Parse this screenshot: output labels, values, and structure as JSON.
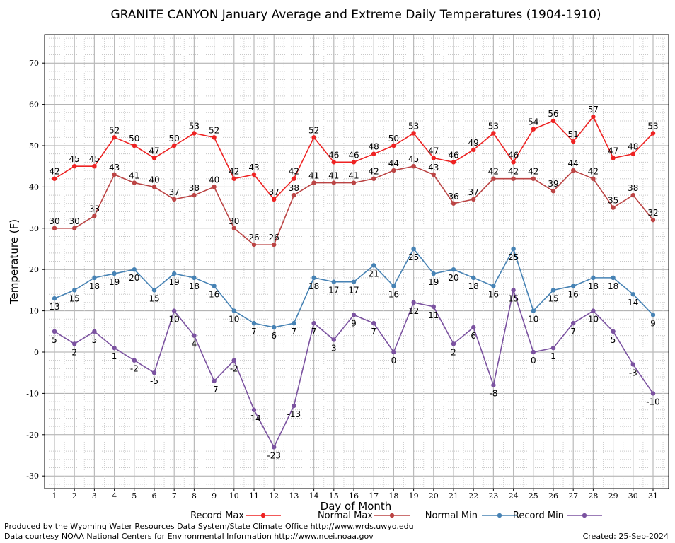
{
  "chart_data": {
    "type": "line",
    "title": "GRANITE CANYON January Average and Extreme Daily Temperatures (1904-1910)",
    "xlabel": "Day of Month",
    "ylabel": "Temperature (F)",
    "x": [
      1,
      2,
      3,
      4,
      5,
      6,
      7,
      8,
      9,
      10,
      11,
      12,
      13,
      14,
      15,
      16,
      17,
      18,
      19,
      20,
      21,
      22,
      23,
      24,
      25,
      26,
      27,
      28,
      29,
      30,
      31
    ],
    "ylim": [
      -35,
      78
    ],
    "yticks": [
      -30,
      -20,
      -10,
      0,
      10,
      20,
      30,
      40,
      50,
      60,
      70
    ],
    "grid": true,
    "legend_position": "bottom",
    "series": [
      {
        "name": "Record Max",
        "color": "#ee2222",
        "values": [
          42,
          45,
          45,
          52,
          50,
          47,
          50,
          53,
          52,
          42,
          43,
          37,
          42,
          52,
          46,
          46,
          48,
          50,
          53,
          47,
          46,
          49,
          53,
          46,
          54,
          56,
          51,
          57,
          47,
          48,
          53
        ]
      },
      {
        "name": "Normal Max",
        "color": "#bb4444",
        "values": [
          30,
          30,
          33,
          43,
          41,
          40,
          37,
          38,
          40,
          30,
          26,
          26,
          38,
          41,
          41,
          41,
          42,
          44,
          45,
          43,
          36,
          37,
          42,
          42,
          42,
          39,
          44,
          42,
          35,
          38,
          32
        ]
      },
      {
        "name": "Normal Min",
        "color": "#4682b4",
        "values": [
          13,
          15,
          18,
          19,
          20,
          15,
          19,
          18,
          16,
          10,
          7,
          6,
          7,
          18,
          17,
          17,
          21,
          16,
          25,
          19,
          20,
          18,
          16,
          25,
          10,
          15,
          16,
          18,
          18,
          14,
          9
        ]
      },
      {
        "name": "Record Min",
        "color": "#7b52a0",
        "values": [
          5,
          2,
          5,
          1,
          -2,
          -5,
          10,
          4,
          -7,
          -2,
          -14,
          -23,
          -13,
          7,
          3,
          9,
          7,
          0,
          12,
          11,
          2,
          6,
          -8,
          15,
          0,
          1,
          7,
          10,
          5,
          -3,
          -10
        ]
      }
    ]
  },
  "footer": {
    "produced_by": "Produced by the Wyoming Water Resources Data System/State Climate Office http://www.wrds.uwyo.edu",
    "data_courtesy": "Data courtesy NOAA National Centers for Environmental Information http://www.ncei.noaa.gov",
    "created": "Created:  25-Sep-2024"
  }
}
